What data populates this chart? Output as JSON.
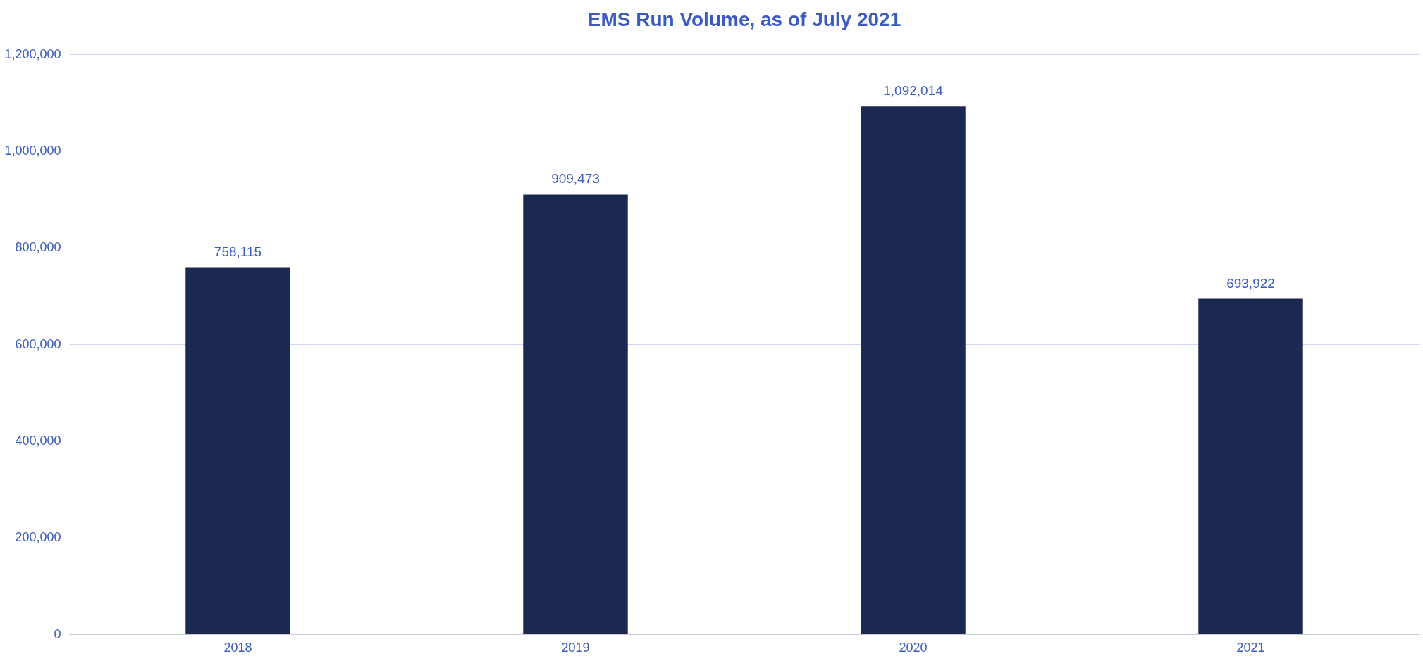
{
  "chart_data": {
    "type": "bar",
    "title": "EMS Run Volume, as of July 2021",
    "categories": [
      "2018",
      "2019",
      "2020",
      "2021"
    ],
    "values": [
      758115,
      909473,
      1092014,
      693922
    ],
    "value_labels": [
      "758,115",
      "909,473",
      "1,092,014",
      "693,922"
    ],
    "color": "#1b2951",
    "ylim": [
      0,
      1200000
    ],
    "yticks": [
      0,
      {
        "value": 200000,
        "label": "200,000"
      },
      {
        "value": 400000,
        "label": "400,000"
      },
      {
        "value": 600000,
        "label": "600,000"
      },
      {
        "value": 800000,
        "label": "800,000"
      },
      {
        "value": 1000000,
        "label": "1,000,000"
      },
      {
        "value": 1200000,
        "label": "1,200,000"
      }
    ],
    "grid": "y"
  }
}
